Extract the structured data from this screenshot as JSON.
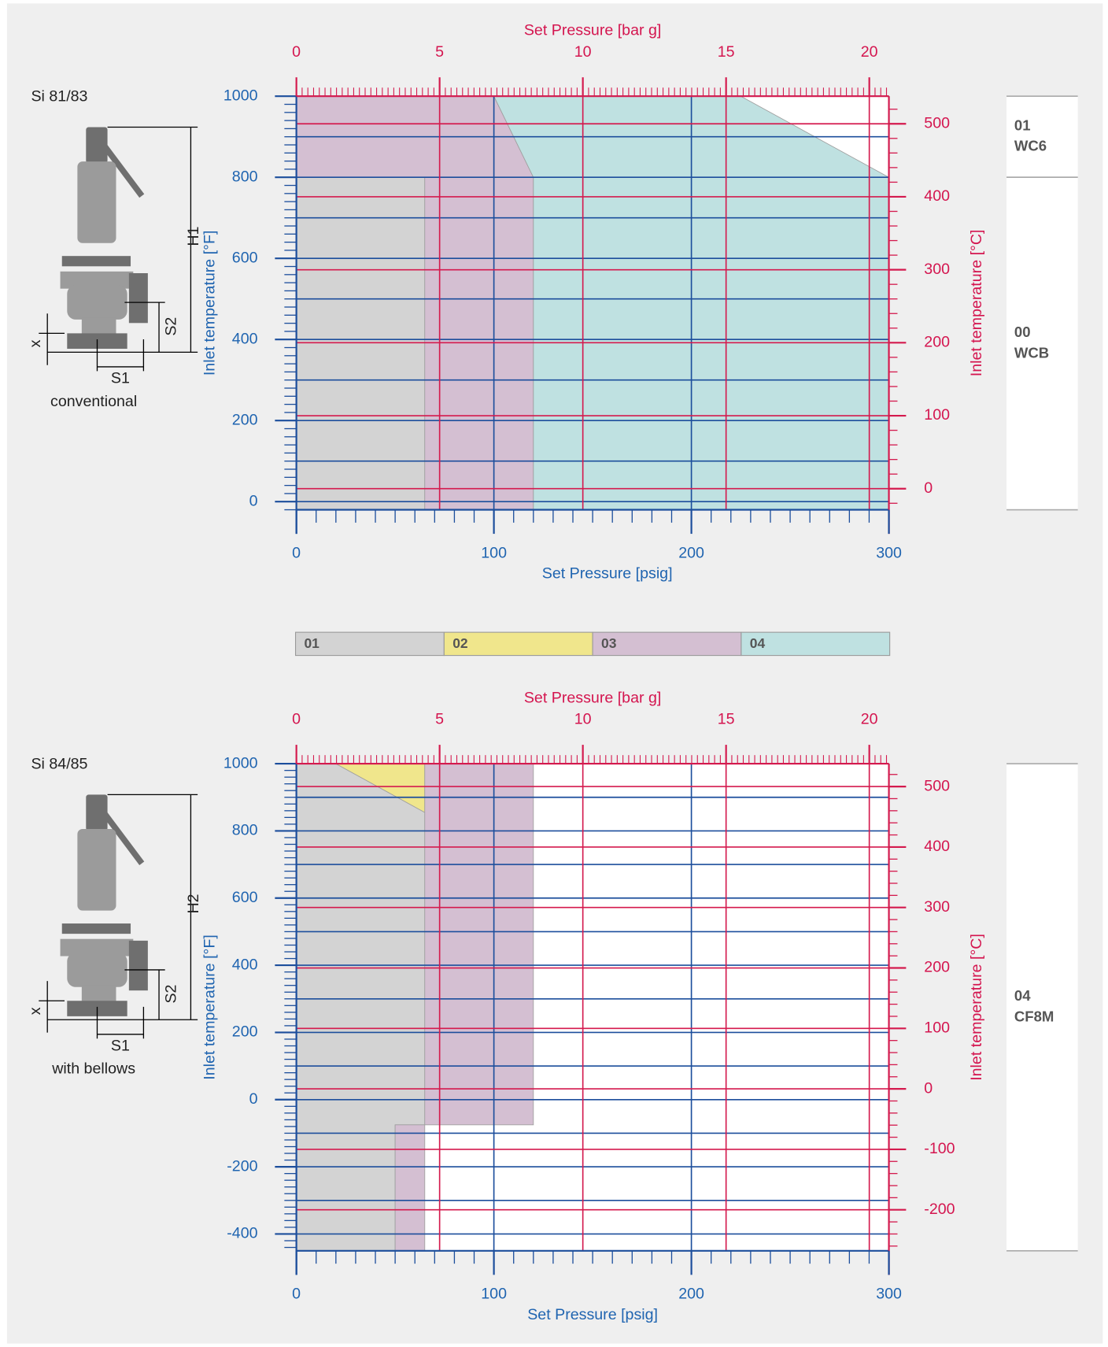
{
  "chart_data": [
    {
      "type": "area",
      "title": "Set Pressure [bar g]",
      "xlabel": "Set Pressure [psig]",
      "ylabel": "Inlet temperature [°F]",
      "y2label": "Inlet temperature [°C]",
      "xlim": [
        0,
        300
      ],
      "xticks": [
        0,
        100,
        200,
        300
      ],
      "xminor": 10,
      "x2lim": [
        0,
        20.684
      ],
      "x2ticks": [
        0,
        5,
        10,
        15,
        20
      ],
      "x2minor": 0.2,
      "ylim": [
        -20,
        1000
      ],
      "yticks": [
        0,
        200,
        400,
        600,
        800,
        1000
      ],
      "ygrid": [
        0,
        100,
        200,
        300,
        400,
        500,
        600,
        700,
        800,
        900,
        1000
      ],
      "yminor": 20,
      "y2lim": [
        -28.9,
        537.8
      ],
      "y2ticks": [
        0,
        100,
        200,
        300,
        400,
        500
      ],
      "y2minor": 20,
      "regions": [
        {
          "name": "01",
          "color": "#d3d3d3",
          "x": [
            0,
            65,
            65,
            0
          ],
          "y": [
            800,
            800,
            -20,
            -20
          ]
        },
        {
          "name": "03",
          "color": "#d4bfd2",
          "x": [
            0,
            100,
            120,
            120,
            65,
            65,
            0
          ],
          "y": [
            1000,
            1000,
            800,
            -20,
            -20,
            800,
            800
          ]
        },
        {
          "name": "04",
          "color": "#bfe1e1",
          "x": [
            100,
            225,
            300,
            300,
            120,
            120
          ],
          "y": [
            1000,
            1000,
            800,
            -20,
            -20,
            800
          ]
        }
      ],
      "materials": [
        {
          "code": "01",
          "name": "WC6",
          "ylim": [
            800,
            1000
          ]
        },
        {
          "code": "00",
          "name": "WCB",
          "ylim": [
            -20,
            800
          ]
        }
      ],
      "figure": {
        "model": "Si 81/83",
        "caption": "conventional",
        "height": "H1",
        "s1": "S1",
        "s2": "S2",
        "x": "x"
      }
    },
    {
      "type": "area",
      "title": "Set Pressure [bar g]",
      "xlabel": "Set Pressure [psig]",
      "ylabel": "Inlet temperature [°F]",
      "y2label": "Inlet temperature [°C]",
      "xlim": [
        0,
        300
      ],
      "xticks": [
        0,
        100,
        200,
        300
      ],
      "xminor": 10,
      "x2lim": [
        0,
        20.684
      ],
      "x2ticks": [
        0,
        5,
        10,
        15,
        20
      ],
      "x2minor": 0.2,
      "ylim": [
        -450,
        1000
      ],
      "yticks": [
        -400,
        -200,
        0,
        200,
        400,
        600,
        800,
        1000
      ],
      "ygrid": [
        -400,
        -300,
        -200,
        -100,
        0,
        100,
        200,
        300,
        400,
        500,
        600,
        700,
        800,
        900,
        1000
      ],
      "yminor": 20,
      "y2lim": [
        -267.8,
        537.8
      ],
      "y2ticks": [
        -200,
        -100,
        0,
        100,
        200,
        300,
        400,
        500
      ],
      "y2minor": 20,
      "regions": [
        {
          "name": "01",
          "color": "#d3d3d3",
          "x": [
            0,
            20,
            65,
            65,
            50,
            50,
            0
          ],
          "y": [
            1000,
            1000,
            855,
            -75,
            -75,
            -450,
            -450
          ]
        },
        {
          "name": "02",
          "color": "#f0e68c",
          "x": [
            20,
            65,
            65
          ],
          "y": [
            1000,
            1000,
            855
          ]
        },
        {
          "name": "03",
          "color": "#d4bfd2",
          "x": [
            65,
            120,
            120,
            50,
            50,
            65
          ],
          "y": [
            1000,
            1000,
            -75,
            -75,
            -450,
            -450
          ]
        }
      ],
      "materials": [
        {
          "code": "04",
          "name": "CF8M",
          "ylim": [
            -450,
            1000
          ]
        }
      ],
      "figure": {
        "model": "Si 84/85",
        "caption": "with bellows",
        "height": "H2",
        "s1": "S1",
        "s2": "S2",
        "x": "x"
      }
    }
  ],
  "legend": [
    {
      "name": "01",
      "color": "#d3d3d3"
    },
    {
      "name": "02",
      "color": "#f0e68c"
    },
    {
      "name": "03",
      "color": "#d4bfd2"
    },
    {
      "name": "04",
      "color": "#bfe1e1"
    }
  ]
}
